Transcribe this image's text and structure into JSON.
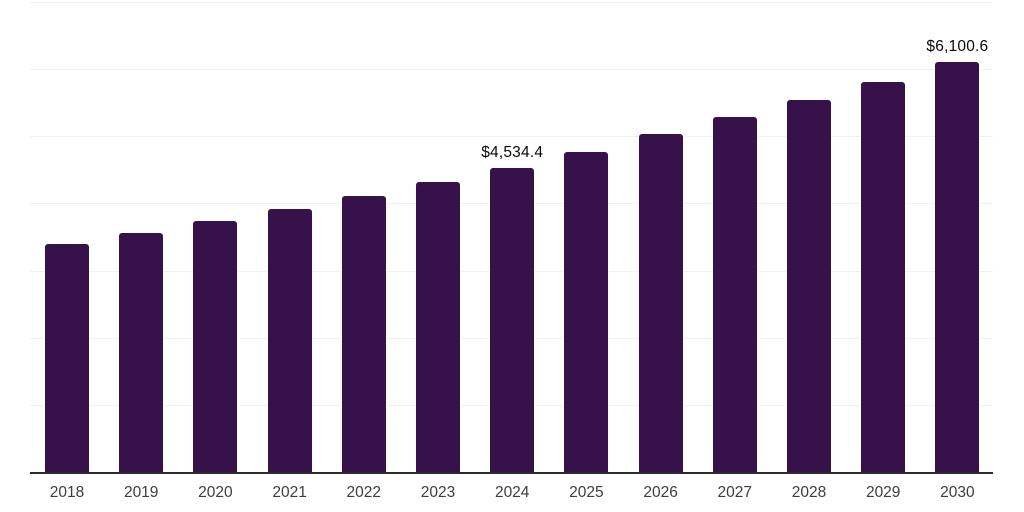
{
  "chart_data": {
    "type": "bar",
    "title": "",
    "xlabel": "",
    "ylabel": "",
    "categories": [
      "2018",
      "2019",
      "2020",
      "2021",
      "2022",
      "2023",
      "2024",
      "2025",
      "2026",
      "2027",
      "2028",
      "2029",
      "2030"
    ],
    "values": [
      3400,
      3560,
      3740,
      3920,
      4110,
      4320,
      4534.4,
      4770,
      5030,
      5290,
      5545,
      5815,
      6100.6
    ],
    "value_labels": [
      {
        "index": 6,
        "text": "$4,534.4"
      },
      {
        "index": 12,
        "text": "$6,100.6"
      }
    ],
    "ylim": [
      0,
      7000
    ],
    "gridline_step": 1000,
    "grid": "horizontal",
    "legend": "none",
    "y_axis_tick_labels_visible": false
  },
  "colors": {
    "bar": "#371149",
    "gridline": "#f1f1f1",
    "axis_line": "#2b2b2b",
    "value_label_text": "#0a0a0a",
    "tick_label_text": "#3d3d3d",
    "background": "#ffffff"
  }
}
